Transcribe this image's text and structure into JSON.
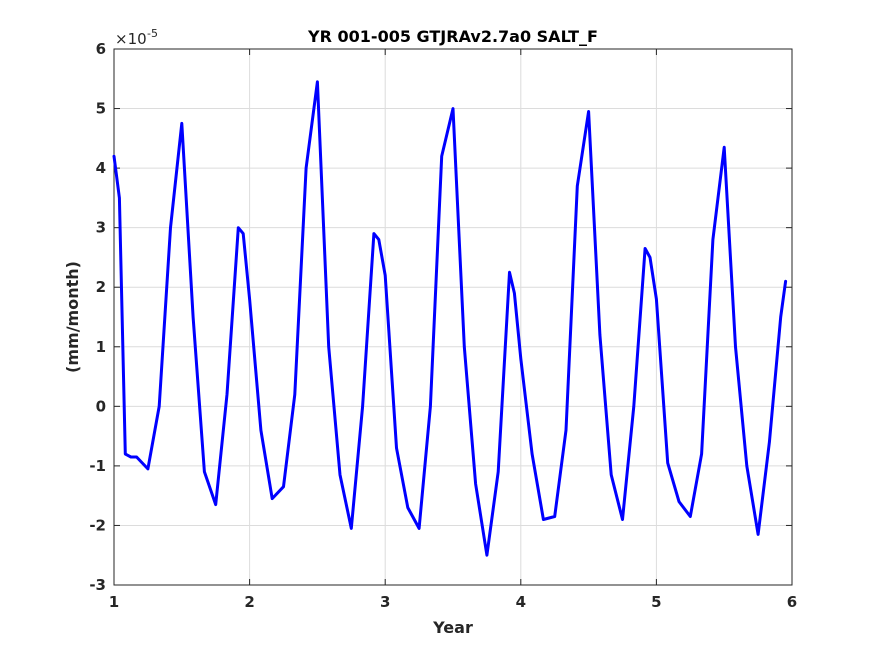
{
  "chart_data": {
    "type": "line",
    "title": "YR 001-005 GTJRAv2.7a0 SALT_F",
    "xlabel": "Year",
    "ylabel": "(mm/month)",
    "exponent_label": {
      "base": "×10",
      "power": "-5"
    },
    "xlim": [
      1,
      6
    ],
    "ylim": [
      -3,
      6
    ],
    "xticks": [
      "1",
      "2",
      "3",
      "4",
      "5",
      "6"
    ],
    "yticks": [
      "-3",
      "-2",
      "-1",
      "0",
      "1",
      "2",
      "3",
      "4",
      "5",
      "6"
    ],
    "grid": true,
    "line_color": "#0000ff",
    "series": [
      {
        "x": [
          1.0,
          1.04,
          1.083,
          1.125,
          1.167,
          1.25,
          1.333,
          1.417,
          1.5,
          1.583,
          1.667,
          1.75,
          1.833,
          1.917,
          1.953,
          2.0,
          2.083,
          2.167,
          2.25,
          2.333,
          2.417,
          2.5,
          2.583,
          2.667,
          2.75,
          2.833,
          2.917,
          2.953,
          3.0,
          3.083,
          3.167,
          3.25,
          3.333,
          3.417,
          3.5,
          3.583,
          3.667,
          3.75,
          3.833,
          3.917,
          3.953,
          4.0,
          4.083,
          4.167,
          4.25,
          4.333,
          4.417,
          4.5,
          4.583,
          4.667,
          4.75,
          4.833,
          4.917,
          4.953,
          5.0,
          5.083,
          5.167,
          5.25,
          5.333,
          5.417,
          5.5,
          5.583,
          5.667,
          5.75,
          5.833,
          5.917,
          5.953
        ],
        "values": [
          4.2,
          3.5,
          -0.8,
          -0.85,
          -0.85,
          -1.05,
          0.0,
          3.0,
          4.75,
          1.5,
          -1.1,
          -1.65,
          0.2,
          3.0,
          2.9,
          1.8,
          -0.4,
          -1.55,
          -1.35,
          0.2,
          4.0,
          5.45,
          1.0,
          -1.15,
          -2.05,
          0.0,
          2.9,
          2.8,
          2.2,
          -0.7,
          -1.7,
          -2.05,
          0.0,
          4.2,
          5.0,
          1.0,
          -1.3,
          -2.5,
          -1.1,
          2.25,
          1.9,
          0.8,
          -0.8,
          -1.9,
          -1.85,
          -0.4,
          3.7,
          4.95,
          1.2,
          -1.15,
          -1.9,
          0.0,
          2.65,
          2.5,
          1.8,
          -0.95,
          -1.6,
          -1.85,
          -0.8,
          2.8,
          4.35,
          1.0,
          -1.0,
          -2.15,
          -0.6,
          1.5,
          2.1
        ]
      }
    ]
  }
}
